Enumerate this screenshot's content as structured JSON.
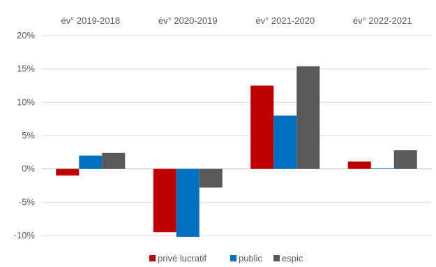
{
  "chart_data": {
    "type": "bar",
    "categories": [
      "év° 2019-2018",
      "év° 2020-2019",
      "év° 2021-2020",
      "év° 2022-2021"
    ],
    "series": [
      {
        "name": "privé lucratif",
        "color": "#c00000",
        "values": [
          -1.0,
          -9.5,
          12.5,
          1.1
        ]
      },
      {
        "name": "public",
        "color": "#0070c0",
        "values": [
          2.0,
          -10.2,
          8.0,
          0.1
        ]
      },
      {
        "name": "espic",
        "color": "#595959",
        "values": [
          2.4,
          -2.8,
          15.4,
          2.8
        ]
      }
    ],
    "ylim": [
      -10,
      20
    ],
    "yticks": [
      "-10%",
      "-5%",
      "0%",
      "5%",
      "10%",
      "15%",
      "20%"
    ],
    "grid": true,
    "legend_position": "bottom",
    "category_label_position": "top"
  }
}
